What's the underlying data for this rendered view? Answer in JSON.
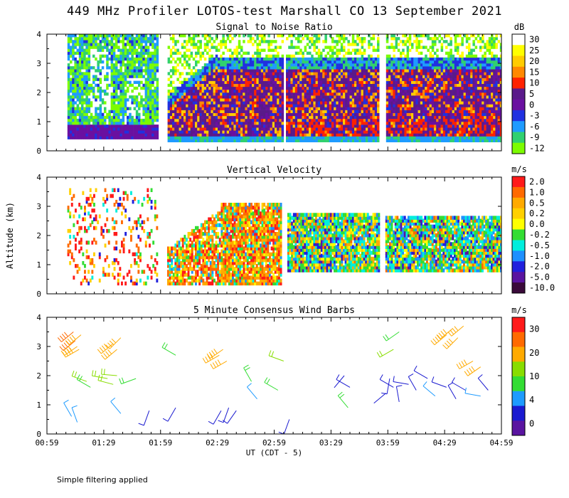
{
  "title": "449 MHz Profiler LOTOS-test Marshall CO 13 September 2021",
  "note": "Simple filtering applied",
  "chart_data": [
    {
      "type": "heatmap",
      "title": "Signal to Noise Ratio",
      "ylabel": "",
      "ylim": [
        0,
        4
      ],
      "yticks": [
        "0",
        "1",
        "2",
        "3",
        "4"
      ],
      "colorbar_unit": "dB",
      "colorbar_labels": [
        "30",
        "25",
        "20",
        "15",
        "10",
        "5",
        "0",
        "-3",
        "-6",
        "-9",
        "-12"
      ],
      "colorbar_colors": [
        "#ffffff",
        "#ffff00",
        "#ffcc00",
        "#ff8800",
        "#ff2200",
        "#5a1a8a",
        "#6a10a0",
        "#2030e0",
        "#1e9bff",
        "#30d070",
        "#7cfc00"
      ],
      "data_gaps_ut": [
        [
          "01:57",
          "02:02"
        ],
        [
          "03:03",
          "03:05"
        ],
        [
          "03:54",
          "03:57"
        ]
      ]
    },
    {
      "type": "heatmap",
      "title": "Vertical Velocity",
      "ylabel": "Altitude (km)",
      "ylim": [
        0,
        4
      ],
      "yticks": [
        "0",
        "1",
        "2",
        "3",
        "4"
      ],
      "colorbar_unit": "m/s",
      "colorbar_labels": [
        "2.0",
        "1.0",
        "0.5",
        "0.2",
        "0.0",
        "-0.2",
        "-0.5",
        "-1.0",
        "-2.0",
        "-5.0",
        "-10.0"
      ],
      "colorbar_colors": [
        "#ff1a1a",
        "#ff6a00",
        "#ffaa00",
        "#ffd000",
        "#ffff00",
        "#33dd33",
        "#00eedd",
        "#1e90ff",
        "#2020dd",
        "#5a14a0",
        "#3a0a3a"
      ]
    },
    {
      "type": "scatter",
      "title": "5 Minute Consensus Wind Barbs",
      "xlabel": "UT  (CDT - 5)",
      "ylim": [
        0,
        4
      ],
      "yticks": [
        "0",
        "1",
        "2",
        "3",
        "4"
      ],
      "xticks": [
        "00:59",
        "01:29",
        "01:59",
        "02:29",
        "02:59",
        "03:29",
        "03:59",
        "04:29",
        "04:59"
      ],
      "colorbar_unit": "m/s",
      "colorbar_labels": [
        "30",
        "20",
        "10",
        "4",
        "0"
      ],
      "colorbar_colors": [
        "#ff1a1a",
        "#ff6a00",
        "#ffaa00",
        "#88dd00",
        "#33dd33",
        "#1e9bff",
        "#1a1ad0",
        "#5a14a0"
      ],
      "barbs": [
        {
          "t": "01:13",
          "alt": 3.5,
          "speed": 22,
          "dir": 230
        },
        {
          "t": "01:14",
          "alt": 3.2,
          "speed": 22,
          "dir": 230
        },
        {
          "t": "01:15",
          "alt": 3.0,
          "speed": 21,
          "dir": 235
        },
        {
          "t": "01:17",
          "alt": 3.4,
          "speed": 20,
          "dir": 230
        },
        {
          "t": "01:16",
          "alt": 2.9,
          "speed": 20,
          "dir": 240
        },
        {
          "t": "01:34",
          "alt": 3.1,
          "speed": 20,
          "dir": 230
        },
        {
          "t": "01:36",
          "alt": 2.9,
          "speed": 19,
          "dir": 230
        },
        {
          "t": "01:38",
          "alt": 3.3,
          "speed": 19,
          "dir": 225
        },
        {
          "t": "01:20",
          "alt": 1.8,
          "speed": 12,
          "dir": 290
        },
        {
          "t": "01:22",
          "alt": 1.6,
          "speed": 10,
          "dir": 300
        },
        {
          "t": "01:31",
          "alt": 1.9,
          "speed": 12,
          "dir": 280
        },
        {
          "t": "01:34",
          "alt": 1.7,
          "speed": 12,
          "dir": 285
        },
        {
          "t": "01:36",
          "alt": 2.0,
          "speed": 12,
          "dir": 275
        },
        {
          "t": "01:46",
          "alt": 1.9,
          "speed": 11,
          "dir": 250
        },
        {
          "t": "01:12",
          "alt": 0.6,
          "speed": 6,
          "dir": 330
        },
        {
          "t": "01:15",
          "alt": 0.4,
          "speed": 5,
          "dir": 340
        },
        {
          "t": "01:38",
          "alt": 0.7,
          "speed": 5,
          "dir": 320
        },
        {
          "t": "01:53",
          "alt": 0.8,
          "speed": 3,
          "dir": 200
        },
        {
          "t": "02:07",
          "alt": 0.9,
          "speed": 3,
          "dir": 210
        },
        {
          "t": "02:07",
          "alt": 2.7,
          "speed": 11,
          "dir": 300
        },
        {
          "t": "02:30",
          "alt": 2.7,
          "speed": 20,
          "dir": 240
        },
        {
          "t": "02:32",
          "alt": 2.9,
          "speed": 20,
          "dir": 235
        },
        {
          "t": "02:34",
          "alt": 2.5,
          "speed": 19,
          "dir": 240
        },
        {
          "t": "02:31",
          "alt": 0.8,
          "speed": 3,
          "dir": 210
        },
        {
          "t": "02:35",
          "alt": 0.9,
          "speed": 3,
          "dir": 200
        },
        {
          "t": "02:39",
          "alt": 0.8,
          "speed": 4,
          "dir": 215
        },
        {
          "t": "02:47",
          "alt": 1.8,
          "speed": 8,
          "dir": 330
        },
        {
          "t": "02:50",
          "alt": 1.2,
          "speed": 5,
          "dir": 320
        },
        {
          "t": "03:01",
          "alt": 1.5,
          "speed": 11,
          "dir": 300
        },
        {
          "t": "03:04",
          "alt": 2.5,
          "speed": 12,
          "dir": 290
        },
        {
          "t": "03:07",
          "alt": 0.5,
          "speed": 4,
          "dir": 200
        },
        {
          "t": "03:36",
          "alt": 2.0,
          "speed": 2,
          "dir": 220
        },
        {
          "t": "03:39",
          "alt": 1.6,
          "speed": 4,
          "dir": 300
        },
        {
          "t": "03:38",
          "alt": 0.9,
          "speed": 8,
          "dir": 320
        },
        {
          "t": "03:58",
          "alt": 1.4,
          "speed": 2,
          "dir": 230
        },
        {
          "t": "04:00",
          "alt": 1.9,
          "speed": 3,
          "dir": 190
        },
        {
          "t": "04:02",
          "alt": 1.6,
          "speed": 4,
          "dir": 300
        },
        {
          "t": "04:05",
          "alt": 1.1,
          "speed": 3,
          "dir": 350
        },
        {
          "t": "04:10",
          "alt": 1.7,
          "speed": 4,
          "dir": 280
        },
        {
          "t": "04:14",
          "alt": 1.5,
          "speed": 4,
          "dir": 330
        },
        {
          "t": "04:20",
          "alt": 1.9,
          "speed": 3,
          "dir": 300
        },
        {
          "t": "04:24",
          "alt": 1.3,
          "speed": 6,
          "dir": 310
        },
        {
          "t": "04:30",
          "alt": 1.6,
          "speed": 4,
          "dir": 290
        },
        {
          "t": "04:35",
          "alt": 1.2,
          "speed": 3,
          "dir": 330
        },
        {
          "t": "04:40",
          "alt": 1.5,
          "speed": 4,
          "dir": 300
        },
        {
          "t": "04:48",
          "alt": 1.3,
          "speed": 5,
          "dir": 280
        },
        {
          "t": "04:52",
          "alt": 1.5,
          "speed": 4,
          "dir": 320
        },
        {
          "t": "04:02",
          "alt": 2.9,
          "speed": 12,
          "dir": 240
        },
        {
          "t": "04:05",
          "alt": 3.5,
          "speed": 11,
          "dir": 235
        },
        {
          "t": "04:30",
          "alt": 3.4,
          "speed": 20,
          "dir": 230
        },
        {
          "t": "04:33",
          "alt": 3.6,
          "speed": 20,
          "dir": 230
        },
        {
          "t": "04:36",
          "alt": 3.3,
          "speed": 19,
          "dir": 225
        },
        {
          "t": "04:39",
          "alt": 3.7,
          "speed": 20,
          "dir": 230
        },
        {
          "t": "04:44",
          "alt": 2.5,
          "speed": 18,
          "dir": 240
        },
        {
          "t": "04:48",
          "alt": 2.3,
          "speed": 18,
          "dir": 235
        }
      ]
    }
  ]
}
